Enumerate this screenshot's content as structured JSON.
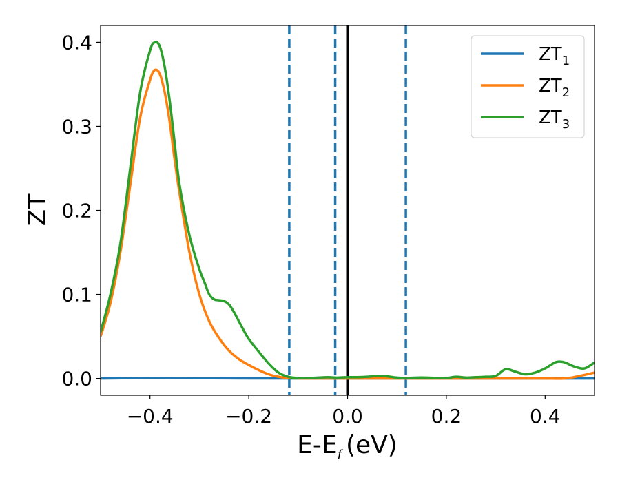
{
  "chart_data": {
    "type": "line",
    "xlabel": "E-E",
    "xlabel_sub": "f",
    "xlabel_unit": "(eV)",
    "ylabel": "ZT",
    "xlim": [
      -0.5,
      0.5
    ],
    "ylim": [
      -0.02,
      0.42
    ],
    "x_ticks": [
      -0.4,
      -0.2,
      0.0,
      0.2,
      0.4
    ],
    "x_tick_labels": [
      "−0.4",
      "−0.2",
      "0.0",
      "0.2",
      "0.4"
    ],
    "y_ticks": [
      0.0,
      0.1,
      0.2,
      0.3,
      0.4
    ],
    "y_tick_labels": [
      "0.0",
      "0.1",
      "0.2",
      "0.3",
      "0.4"
    ],
    "grid": false,
    "legend_position": "top-right",
    "vertical_lines": [
      {
        "x": -0.118,
        "style": "dashed",
        "color": "#1f77b4"
      },
      {
        "x": -0.025,
        "style": "dashed",
        "color": "#1f77b4"
      },
      {
        "x": 0.0,
        "style": "solid",
        "color": "#000000"
      },
      {
        "x": 0.118,
        "style": "dashed",
        "color": "#1f77b4"
      }
    ],
    "series": [
      {
        "name": "ZT",
        "subscript": "1",
        "color": "#1f77b4",
        "x": [
          -0.5,
          -0.4,
          -0.3,
          -0.2,
          -0.1,
          0.0,
          0.1,
          0.2,
          0.3,
          0.4,
          0.5
        ],
        "y": [
          0.0,
          0.0005,
          0.0003,
          0.0001,
          0.0,
          0.0,
          0.0,
          0.0,
          0.0,
          0.0,
          0.0
        ]
      },
      {
        "name": "ZT",
        "subscript": "2",
        "color": "#ff7f0e",
        "x": [
          -0.5,
          -0.48,
          -0.46,
          -0.44,
          -0.42,
          -0.4,
          -0.39,
          -0.38,
          -0.37,
          -0.36,
          -0.35,
          -0.34,
          -0.32,
          -0.3,
          -0.28,
          -0.26,
          -0.24,
          -0.22,
          -0.2,
          -0.18,
          -0.16,
          -0.14,
          -0.12,
          -0.1,
          -0.08,
          -0.06,
          -0.04,
          -0.02,
          0.0,
          0.04,
          0.08,
          0.12,
          0.16,
          0.2,
          0.25,
          0.3,
          0.35,
          0.4,
          0.44,
          0.47,
          0.5
        ],
        "y": [
          0.05,
          0.09,
          0.15,
          0.23,
          0.31,
          0.355,
          0.367,
          0.362,
          0.34,
          0.305,
          0.26,
          0.22,
          0.15,
          0.1,
          0.068,
          0.048,
          0.033,
          0.023,
          0.016,
          0.01,
          0.005,
          0.002,
          0.0005,
          0.0001,
          0.0,
          0.0,
          0.0,
          0.0,
          0.0,
          0.0,
          0.0,
          0.0,
          0.0,
          0.0,
          0.0,
          0.0,
          0.0,
          0.0,
          0.0,
          0.003,
          0.007
        ]
      },
      {
        "name": "ZT",
        "subscript": "3",
        "color": "#2ca02c",
        "x": [
          -0.5,
          -0.48,
          -0.46,
          -0.44,
          -0.42,
          -0.4,
          -0.39,
          -0.38,
          -0.37,
          -0.36,
          -0.35,
          -0.34,
          -0.32,
          -0.3,
          -0.29,
          -0.28,
          -0.27,
          -0.26,
          -0.25,
          -0.24,
          -0.23,
          -0.22,
          -0.21,
          -0.2,
          -0.18,
          -0.16,
          -0.14,
          -0.12,
          -0.1,
          -0.08,
          -0.06,
          -0.04,
          -0.02,
          0.0,
          0.02,
          0.04,
          0.06,
          0.08,
          0.1,
          0.12,
          0.14,
          0.16,
          0.18,
          0.2,
          0.22,
          0.24,
          0.26,
          0.28,
          0.3,
          0.32,
          0.34,
          0.36,
          0.38,
          0.4,
          0.42,
          0.43,
          0.44,
          0.46,
          0.48,
          0.5
        ],
        "y": [
          0.055,
          0.1,
          0.16,
          0.25,
          0.34,
          0.39,
          0.4,
          0.395,
          0.37,
          0.33,
          0.28,
          0.23,
          0.17,
          0.13,
          0.115,
          0.1,
          0.094,
          0.093,
          0.092,
          0.088,
          0.079,
          0.068,
          0.057,
          0.047,
          0.032,
          0.018,
          0.007,
          0.002,
          0.0005,
          0.0005,
          0.001,
          0.0015,
          0.001,
          0.0015,
          0.0015,
          0.002,
          0.003,
          0.0025,
          0.001,
          0.0005,
          0.001,
          0.001,
          0.0005,
          0.0005,
          0.002,
          0.001,
          0.0015,
          0.002,
          0.003,
          0.011,
          0.008,
          0.005,
          0.007,
          0.012,
          0.019,
          0.02,
          0.019,
          0.014,
          0.012,
          0.019
        ]
      }
    ]
  }
}
